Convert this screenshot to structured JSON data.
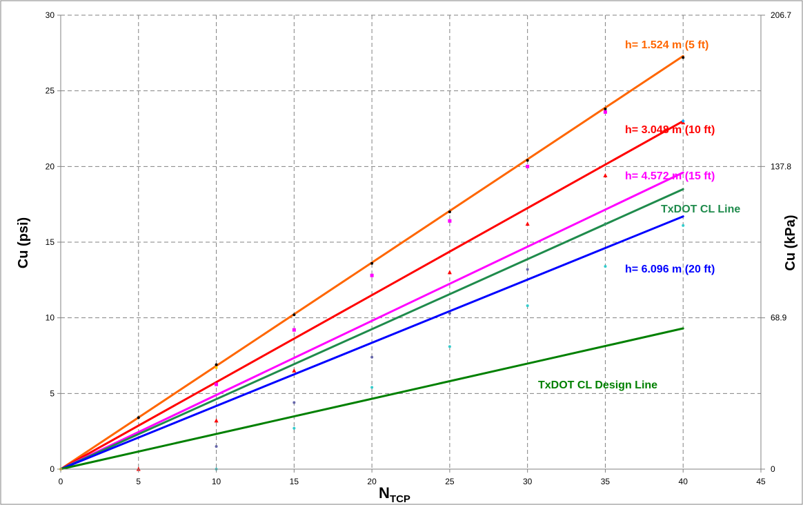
{
  "chart_data": {
    "type": "scatter",
    "title": "",
    "xlabel": {
      "main": "N",
      "sub": "TCP"
    },
    "ylabel": "Cu (psi)",
    "y2label": "Cu (kPa)",
    "xlim": [
      0,
      45
    ],
    "ylim": [
      0,
      30
    ],
    "x_ticks": [
      "0",
      "5",
      "10",
      "15",
      "20",
      "25",
      "30",
      "35",
      "40",
      "45"
    ],
    "y_ticks": [
      "0",
      "5",
      "10",
      "15",
      "20",
      "25",
      "30"
    ],
    "y2_ticks": [
      {
        "psi": 0,
        "label": "0"
      },
      {
        "psi": 10,
        "label": "68.9"
      },
      {
        "psi": 20,
        "label": "137.8"
      },
      {
        "psi": 30,
        "label": "206.7"
      }
    ],
    "grid": true,
    "lines": [
      {
        "name": "h= 1.524 m (5 ft)",
        "color": "#ff6600",
        "points": [
          [
            0,
            0
          ],
          [
            40,
            27.3
          ]
        ]
      },
      {
        "name": "h= 3.048 m (10 ft)",
        "color": "#ff0000",
        "points": [
          [
            0,
            0
          ],
          [
            40,
            23.0
          ]
        ]
      },
      {
        "name": "h= 4.572 m (15 ft)",
        "color": "#ff00ff",
        "points": [
          [
            0,
            0
          ],
          [
            40,
            19.6
          ]
        ]
      },
      {
        "name": "TxDOT CL Line",
        "color": "#1f8b4c",
        "points": [
          [
            0,
            0
          ],
          [
            40,
            18.5
          ]
        ]
      },
      {
        "name": "h= 6.096 m (20 ft)",
        "color": "#0000ff",
        "points": [
          [
            0,
            0
          ],
          [
            40,
            16.7
          ]
        ]
      },
      {
        "name": "TxDOT CL Design Line",
        "color": "#008000",
        "points": [
          [
            0,
            0
          ],
          [
            40,
            9.3
          ]
        ]
      }
    ],
    "scatter": [
      {
        "color": "#000000",
        "marker": "dot",
        "points": [
          [
            5,
            3.4
          ],
          [
            10,
            6.9
          ],
          [
            15,
            10.2
          ],
          [
            20,
            13.6
          ],
          [
            25,
            17.0
          ],
          [
            30,
            20.4
          ],
          [
            35,
            23.8
          ],
          [
            40,
            27.2
          ]
        ]
      },
      {
        "color": "#ffcc00",
        "marker": "dot",
        "points": [
          [
            0,
            0
          ],
          [
            10,
            6.7
          ]
        ]
      },
      {
        "color": "#ff00ff",
        "marker": "square",
        "points": [
          [
            10,
            5.6
          ],
          [
            15,
            9.2
          ],
          [
            20,
            12.8
          ],
          [
            25,
            16.4
          ],
          [
            30,
            20.0
          ],
          [
            35,
            23.6
          ]
        ]
      },
      {
        "color": "#ff0000",
        "marker": "triangle",
        "points": [
          [
            5,
            0.0
          ],
          [
            10,
            3.2
          ],
          [
            15,
            6.5
          ],
          [
            25,
            13.0
          ],
          [
            30,
            16.2
          ],
          [
            35,
            19.4
          ],
          [
            40,
            22.9
          ]
        ]
      },
      {
        "color": "#6666aa",
        "marker": "dot",
        "points": [
          [
            10,
            1.5
          ],
          [
            15,
            4.4
          ],
          [
            20,
            7.4
          ],
          [
            25,
            10.3
          ],
          [
            30,
            13.2
          ]
        ]
      },
      {
        "color": "#33cccc",
        "marker": "dot",
        "points": [
          [
            10,
            0.0
          ],
          [
            15,
            2.7
          ],
          [
            20,
            5.4
          ],
          [
            25,
            8.1
          ],
          [
            30,
            10.8
          ],
          [
            35,
            13.4
          ],
          [
            40,
            16.1
          ]
        ]
      },
      {
        "color": "#00aaff",
        "marker": "dot",
        "points": [
          [
            40,
            23.0
          ]
        ]
      },
      {
        "color": "#339966",
        "marker": "dot",
        "points": [
          [
            35,
            16.2
          ]
        ]
      }
    ]
  }
}
